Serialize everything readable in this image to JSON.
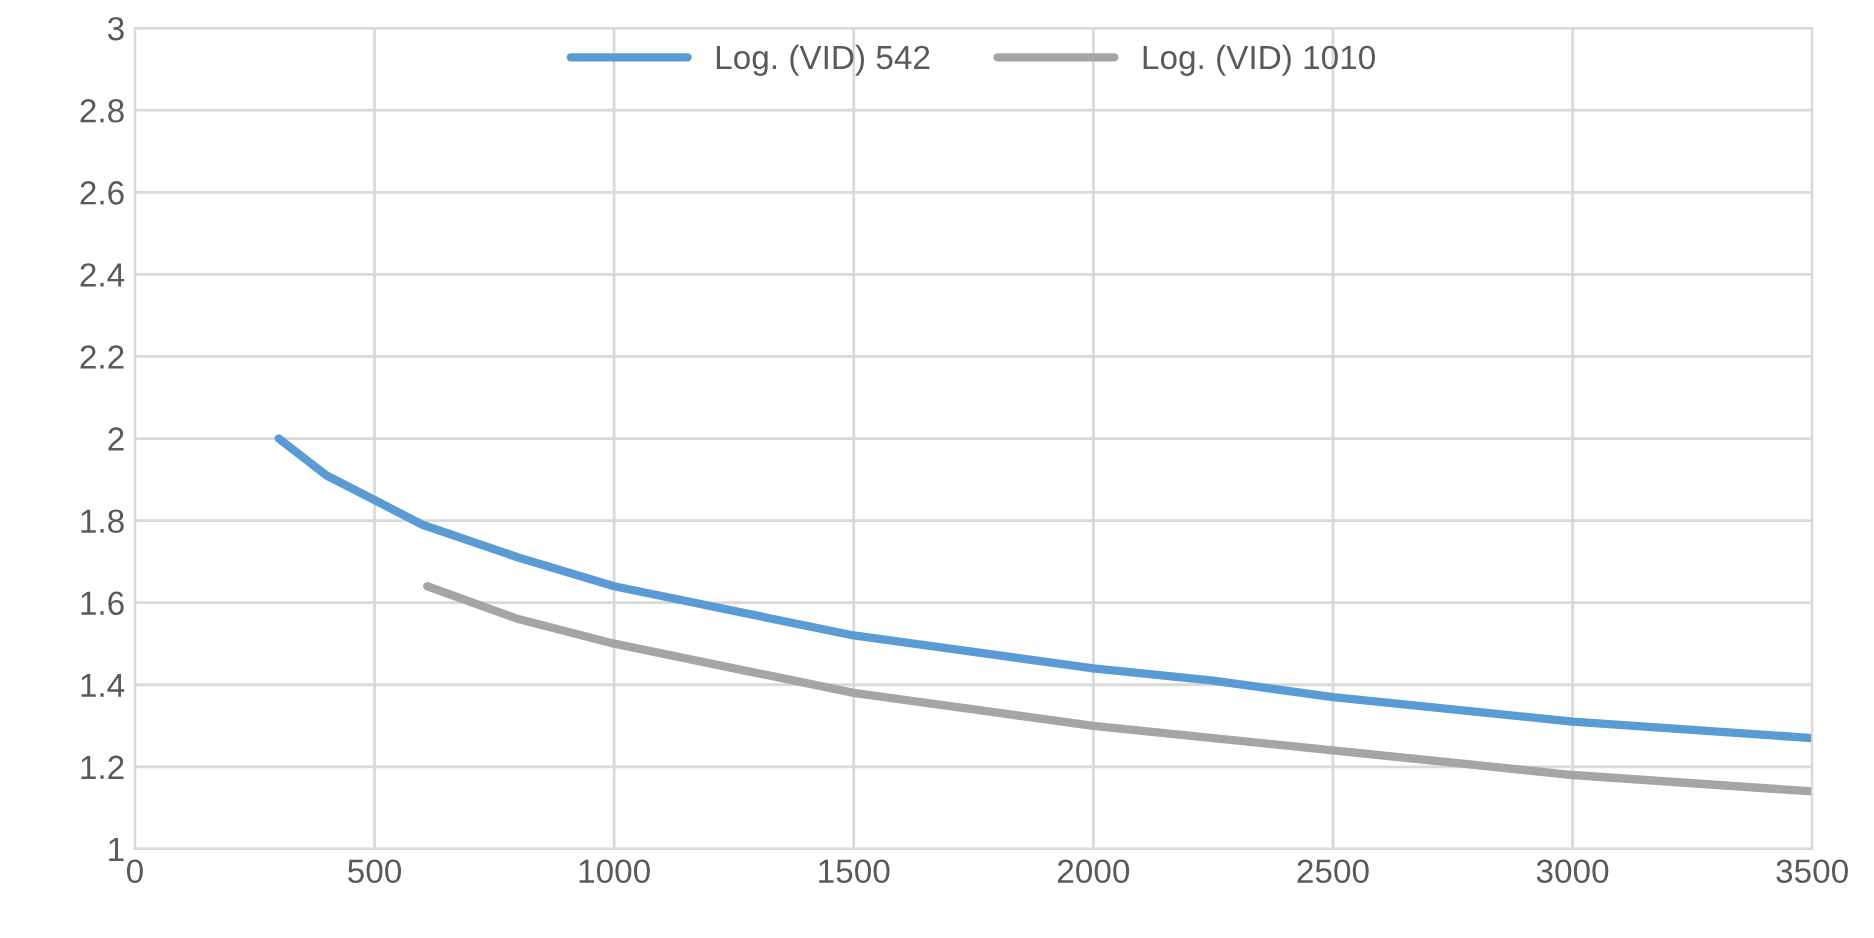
{
  "chart_data": {
    "type": "line",
    "series": [
      {
        "name": "Log. (VID) 542",
        "color": "#5b9bd5",
        "x": [
          300,
          400,
          500,
          600,
          800,
          1000,
          1250,
          1500,
          1750,
          2000,
          2250,
          2500,
          2750,
          3000,
          3250,
          3500
        ],
        "values": [
          2.0,
          1.91,
          1.85,
          1.79,
          1.71,
          1.64,
          1.58,
          1.52,
          1.48,
          1.44,
          1.41,
          1.37,
          1.34,
          1.31,
          1.29,
          1.27
        ]
      },
      {
        "name": "Log. (VID) 1010",
        "color": "#a5a5a5",
        "x": [
          610,
          800,
          1000,
          1250,
          1500,
          1750,
          2000,
          2250,
          2500,
          2750,
          3000,
          3250,
          3500
        ],
        "values": [
          1.64,
          1.56,
          1.5,
          1.44,
          1.38,
          1.34,
          1.3,
          1.27,
          1.24,
          1.21,
          1.18,
          1.16,
          1.14
        ]
      }
    ],
    "xlim": [
      0,
      3500
    ],
    "xticks": [
      0,
      500,
      1000,
      1500,
      2000,
      2500,
      3000,
      3500
    ],
    "ylim": [
      1,
      3
    ],
    "yticks": [
      1,
      {
        "value": 1.2,
        "label": "1.2"
      },
      {
        "value": 1.4,
        "label": "1.4"
      },
      {
        "value": 1.6,
        "label": "1.6"
      },
      {
        "value": 1.8,
        "label": "1.8"
      },
      2,
      {
        "value": 2.2,
        "label": "2.2"
      },
      {
        "value": 2.4,
        "label": "2.4"
      },
      {
        "value": 2.6,
        "label": "2.6"
      },
      {
        "value": 2.8,
        "label": "2.8"
      },
      3
    ],
    "grid": true,
    "legend": "top",
    "marker": "none",
    "line_style": "solid"
  }
}
